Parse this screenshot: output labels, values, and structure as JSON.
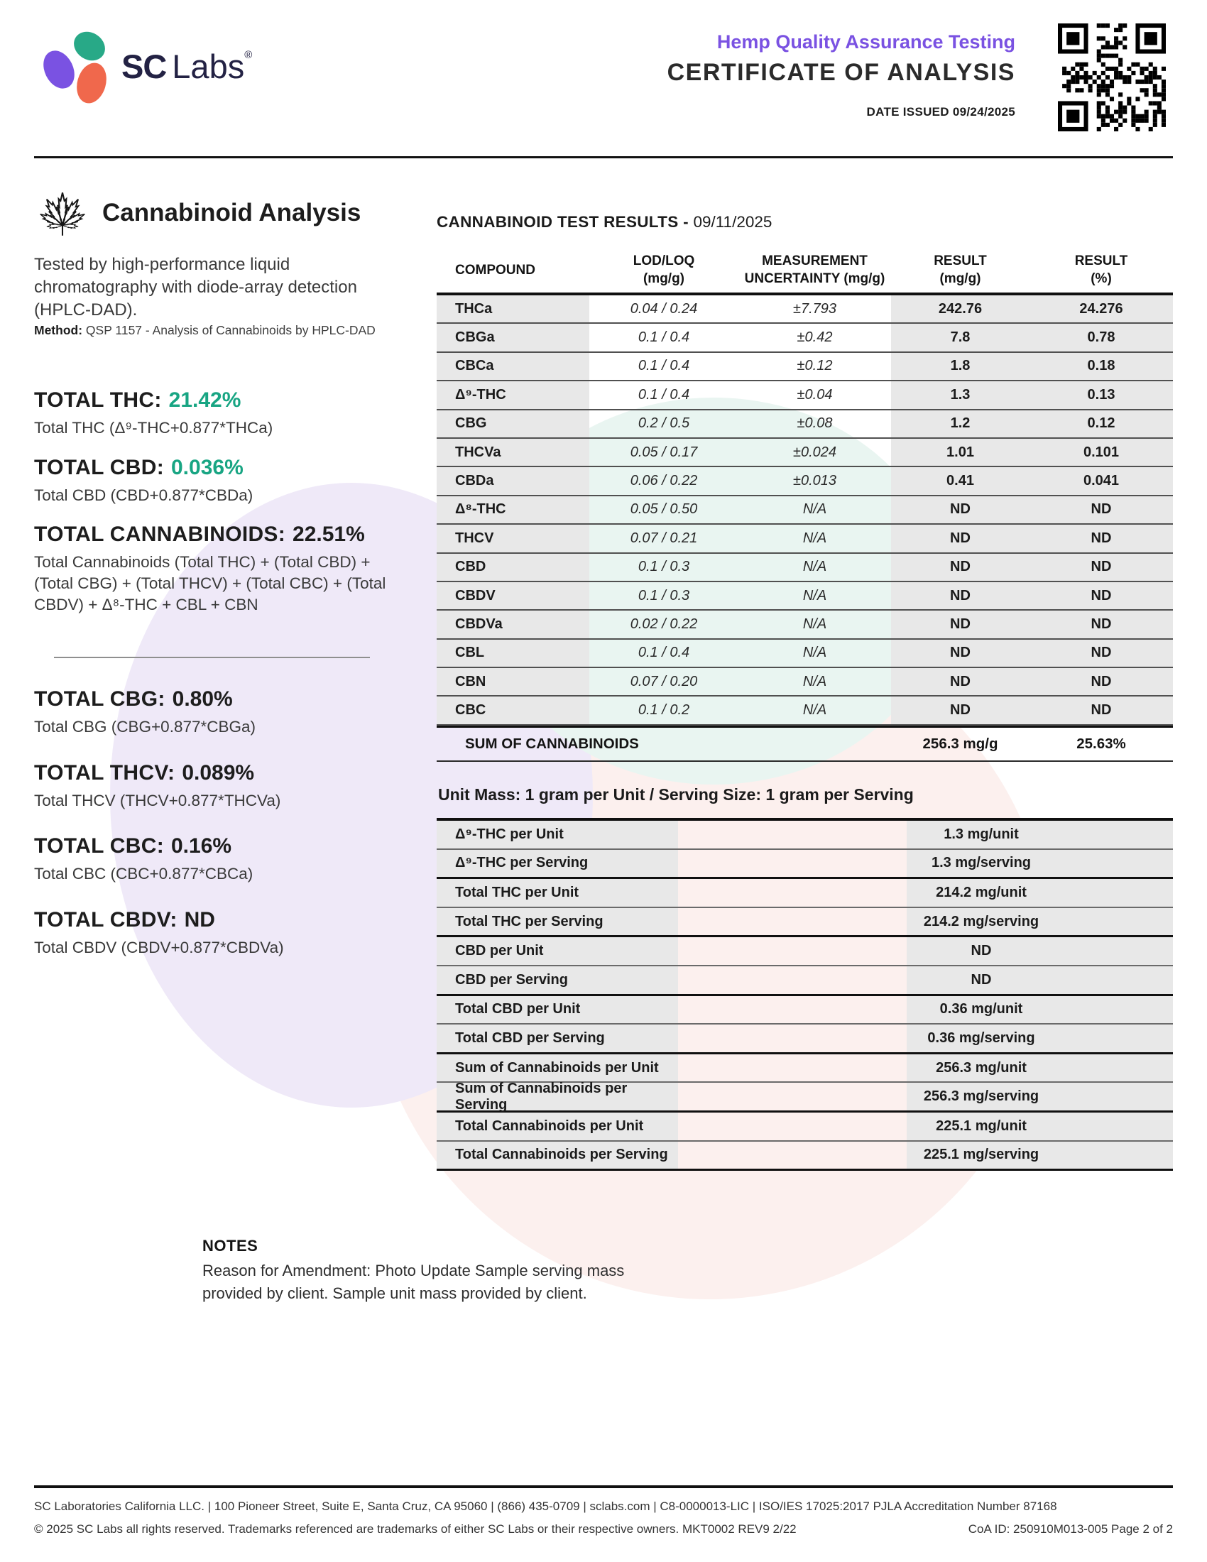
{
  "colors": {
    "accent_green": "#18a583",
    "brand_purple": "#7a52e2",
    "logo_green": "#28a987",
    "logo_orange": "#f0684c",
    "logo_navy": "#232244",
    "table_cell_gray": "#e8e8e8"
  },
  "header": {
    "logo_sc": "SC",
    "logo_labs": "Labs",
    "logo_reg": "®",
    "program": "Hemp Quality Assurance Testing",
    "title": "CERTIFICATE OF ANALYSIS",
    "date_issued": "DATE ISSUED 09/24/2025"
  },
  "analysis": {
    "heading": "Cannabinoid Analysis",
    "description": "Tested by high-performance liquid chromatography with diode-array detection (HPLC-DAD).",
    "method_label": "Method:",
    "method_text": " QSP 1157 - Analysis of Cannabinoids by HPLC-DAD",
    "totals_primary": [
      {
        "label": "TOTAL THC:",
        "value": "21.42%",
        "highlight": true,
        "formula": "Total THC (Δ⁹-THC+0.877*THCa)"
      },
      {
        "label": "TOTAL CBD:",
        "value": "0.036%",
        "highlight": true,
        "formula": "Total CBD (CBD+0.877*CBDa)"
      },
      {
        "label": "TOTAL CANNABINOIDS:",
        "value": "22.51%",
        "highlight": false,
        "formula": "Total Cannabinoids (Total THC) + (Total CBD) + (Total CBG) + (Total THCV) + (Total CBC) + (Total CBDV) + Δ⁸-THC + CBL + CBN"
      }
    ],
    "totals_secondary": [
      {
        "label": "TOTAL CBG:",
        "value": "0.80%",
        "highlight": false,
        "formula": "Total CBG (CBG+0.877*CBGa)"
      },
      {
        "label": "TOTAL THCV:",
        "value": "0.089%",
        "highlight": false,
        "formula": "Total THCV (THCV+0.877*THCVa)"
      },
      {
        "label": "TOTAL CBC:",
        "value": "0.16%",
        "highlight": false,
        "formula": "Total CBC (CBC+0.877*CBCa)"
      },
      {
        "label": "TOTAL CBDV:",
        "value": "ND",
        "highlight": false,
        "formula": "Total CBDV (CBDV+0.877*CBDVa)"
      }
    ]
  },
  "results": {
    "heading_bold": "CANNABINOID TEST RESULTS - ",
    "heading_date": "09/11/2025",
    "header": [
      {
        "l1": "COMPOUND",
        "l2": ""
      },
      {
        "l1": "LOD/LOQ",
        "l2": "(mg/g)"
      },
      {
        "l1": "MEASUREMENT",
        "l2": "UNCERTAINTY (mg/g)"
      },
      {
        "l1": "RESULT",
        "l2": "(mg/g)"
      },
      {
        "l1": "RESULT",
        "l2": "(%)"
      }
    ],
    "rows": [
      [
        "THCa",
        "0.04 / 0.24",
        "±7.793",
        "242.76",
        "24.276"
      ],
      [
        "CBGa",
        "0.1 / 0.4",
        "±0.42",
        "7.8",
        "0.78"
      ],
      [
        "CBCa",
        "0.1 / 0.4",
        "±0.12",
        "1.8",
        "0.18"
      ],
      [
        "Δ⁹-THC",
        "0.1 / 0.4",
        "±0.04",
        "1.3",
        "0.13"
      ],
      [
        "CBG",
        "0.2 / 0.5",
        "±0.08",
        "1.2",
        "0.12"
      ],
      [
        "THCVa",
        "0.05 / 0.17",
        "±0.024",
        "1.01",
        "0.101"
      ],
      [
        "CBDa",
        "0.06 / 0.22",
        "±0.013",
        "0.41",
        "0.041"
      ],
      [
        "Δ⁸-THC",
        "0.05 / 0.50",
        "N/A",
        "ND",
        "ND"
      ],
      [
        "THCV",
        "0.07 / 0.21",
        "N/A",
        "ND",
        "ND"
      ],
      [
        "CBD",
        "0.1 / 0.3",
        "N/A",
        "ND",
        "ND"
      ],
      [
        "CBDV",
        "0.1 / 0.3",
        "N/A",
        "ND",
        "ND"
      ],
      [
        "CBDVa",
        "0.02 / 0.22",
        "N/A",
        "ND",
        "ND"
      ],
      [
        "CBL",
        "0.1 / 0.4",
        "N/A",
        "ND",
        "ND"
      ],
      [
        "CBN",
        "0.07 / 0.20",
        "N/A",
        "ND",
        "ND"
      ],
      [
        "CBC",
        "0.1 / 0.2",
        "N/A",
        "ND",
        "ND"
      ]
    ],
    "sum": {
      "label": "SUM OF CANNABINOIDS",
      "mg": "256.3 mg/g",
      "pct": "25.63%"
    }
  },
  "unit": {
    "heading": "Unit Mass: 1 gram per Unit / Serving Size: 1 gram per Serving",
    "rows": [
      {
        "label": "Δ⁹-THC per Unit",
        "value": "1.3 mg/unit"
      },
      {
        "label": "Δ⁹-THC per Serving",
        "value": "1.3 mg/serving"
      },
      {
        "label": "Total THC per Unit",
        "value": "214.2 mg/unit"
      },
      {
        "label": "Total THC per Serving",
        "value": "214.2 mg/serving"
      },
      {
        "label": "CBD per Unit",
        "value": "ND"
      },
      {
        "label": "CBD per Serving",
        "value": "ND"
      },
      {
        "label": "Total CBD per Unit",
        "value": "0.36 mg/unit"
      },
      {
        "label": "Total CBD per Serving",
        "value": "0.36 mg/serving"
      },
      {
        "label": "Sum of Cannabinoids per Unit",
        "value": "256.3 mg/unit"
      },
      {
        "label": "Sum of Cannabinoids per Serving",
        "value": "256.3 mg/serving"
      },
      {
        "label": "Total Cannabinoids per Unit",
        "value": "225.1 mg/unit"
      },
      {
        "label": "Total Cannabinoids per Serving",
        "value": "225.1 mg/serving"
      }
    ]
  },
  "notes": {
    "heading": "NOTES",
    "body": "Reason for Amendment: Photo Update Sample serving mass provided by client. Sample unit mass provided by client."
  },
  "footer": {
    "line1": "SC Laboratories California LLC. | 100 Pioneer Street, Suite E, Santa Cruz, CA 95060 | (866) 435-0709 | sclabs.com | C8-0000013-LIC | ISO/IES 17025:2017 PJLA Accreditation Number 87168",
    "line2_left": "© 2025 SC Labs all rights reserved. Trademarks referenced are trademarks of either SC Labs or their respective owners. MKT0002 REV9 2/22",
    "line2_right": "CoA ID: 250910M013-005  Page 2 of 2"
  }
}
